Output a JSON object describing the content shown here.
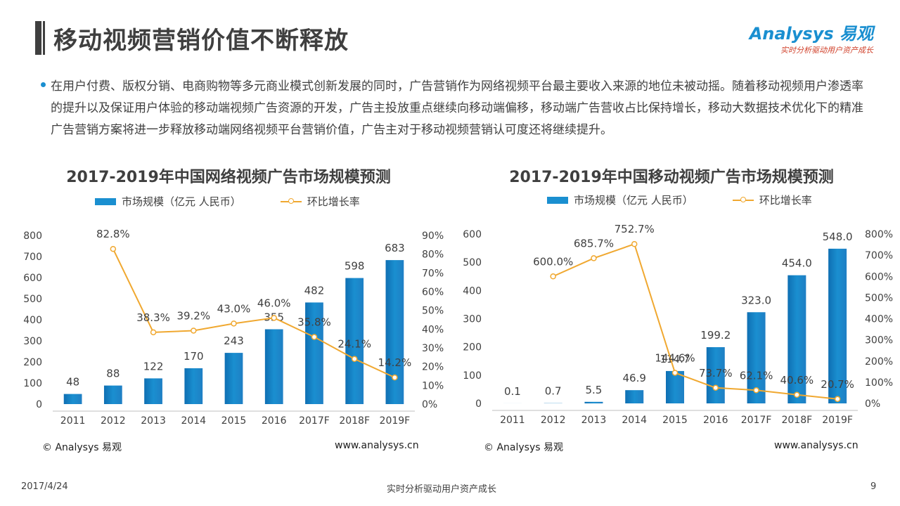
{
  "page": {
    "title": "移动视频营销价值不断释放",
    "logo_main": "Analysys 易观",
    "logo_sub": "实时分析驱动用户资产成长",
    "intro": "在用户付费、版权分销、电商购物等多元商业模式创新发展的同时，广告营销作为网络视频平台最主要收入来源的地位未被动摇。随着移动视频用户渗透率的提升以及保证用户体验的移动端视频广告资源的开发，广告主投放重点继续向移动端偏移，移动端广告营收占比保持增长，移动大数据技术优化下的精准广告营销方案将进一步释放移动端网络视频平台营销价值，广告主对于移动视频营销认可度还将继续提升。",
    "footer_date": "2017/4/24",
    "footer_center": "实时分析驱动用户资产成长",
    "footer_page": "9",
    "bar_color": "#1a8fd0",
    "line_color": "#f0a830"
  },
  "chart_data": [
    {
      "type": "bar",
      "title": "2017-2019年中国网络视频广告市场规模预测",
      "legend_bar": "市场规模（亿元 人民币）",
      "legend_line": "环比增长率",
      "categories": [
        "2011",
        "2012",
        "2013",
        "2014",
        "2015",
        "2016",
        "2017F",
        "2018F",
        "2019F"
      ],
      "series": [
        {
          "name": "市场规模（亿元 人民币）",
          "axis": "left",
          "values": [
            48,
            88,
            122,
            170,
            243,
            355,
            482,
            598,
            683
          ],
          "labels": [
            "48",
            "88",
            "122",
            "170",
            "243",
            "355",
            "482",
            "598",
            "683"
          ]
        },
        {
          "name": "环比增长率",
          "axis": "right",
          "type": "line",
          "values": [
            null,
            82.8,
            38.3,
            39.2,
            43.0,
            46.0,
            35.8,
            24.1,
            14.2
          ],
          "labels": [
            "",
            "82.8%",
            "38.3%",
            "39.2%",
            "43.0%",
            "46.0%",
            "35.8%",
            "24.1%",
            "14.2%"
          ]
        }
      ],
      "ylim": [
        0,
        800
      ],
      "yticks": [
        "0",
        "100",
        "200",
        "300",
        "400",
        "500",
        "600",
        "700",
        "800"
      ],
      "y2lim": [
        0,
        90
      ],
      "y2ticks": [
        "0%",
        "10%",
        "20%",
        "30%",
        "40%",
        "50%",
        "60%",
        "70%",
        "80%",
        "90%"
      ],
      "copyright": "© Analysys 易观",
      "website": "www.analysys.cn"
    },
    {
      "type": "bar",
      "title": "2017-2019年中国移动视频广告市场规模预测",
      "legend_bar": "市场规模（亿元 人民币）",
      "legend_line": "环比增长率",
      "categories": [
        "2011",
        "2012",
        "2013",
        "2014",
        "2015",
        "2016",
        "2017F",
        "2018F",
        "2019F"
      ],
      "series": [
        {
          "name": "市场规模（亿元 人民币）",
          "axis": "left",
          "values": [
            0.1,
            0.7,
            5.5,
            46.9,
            114.7,
            199.2,
            323.0,
            454.0,
            548.0
          ],
          "labels": [
            "0.1",
            "0.7",
            "5.5",
            "46.9",
            "114.7",
            "199.2",
            "323.0",
            "454.0",
            "548.0"
          ]
        },
        {
          "name": "环比增长率",
          "axis": "right",
          "type": "line",
          "values": [
            null,
            600.0,
            685.7,
            752.7,
            144.6,
            73.7,
            62.1,
            40.6,
            20.7
          ],
          "labels": [
            "",
            "600.0%",
            "685.7%",
            "752.7%",
            "144.6%",
            "73.7%",
            "62.1%",
            "40.6%",
            "20.7%"
          ]
        }
      ],
      "ylim": [
        0,
        600
      ],
      "yticks": [
        "0",
        "100",
        "200",
        "300",
        "400",
        "500",
        "600"
      ],
      "y2lim": [
        0,
        800
      ],
      "y2ticks": [
        "0%",
        "100%",
        "200%",
        "300%",
        "400%",
        "500%",
        "600%",
        "700%",
        "800%"
      ],
      "copyright": "© Analysys 易观",
      "website": "www.analysys.cn"
    }
  ]
}
